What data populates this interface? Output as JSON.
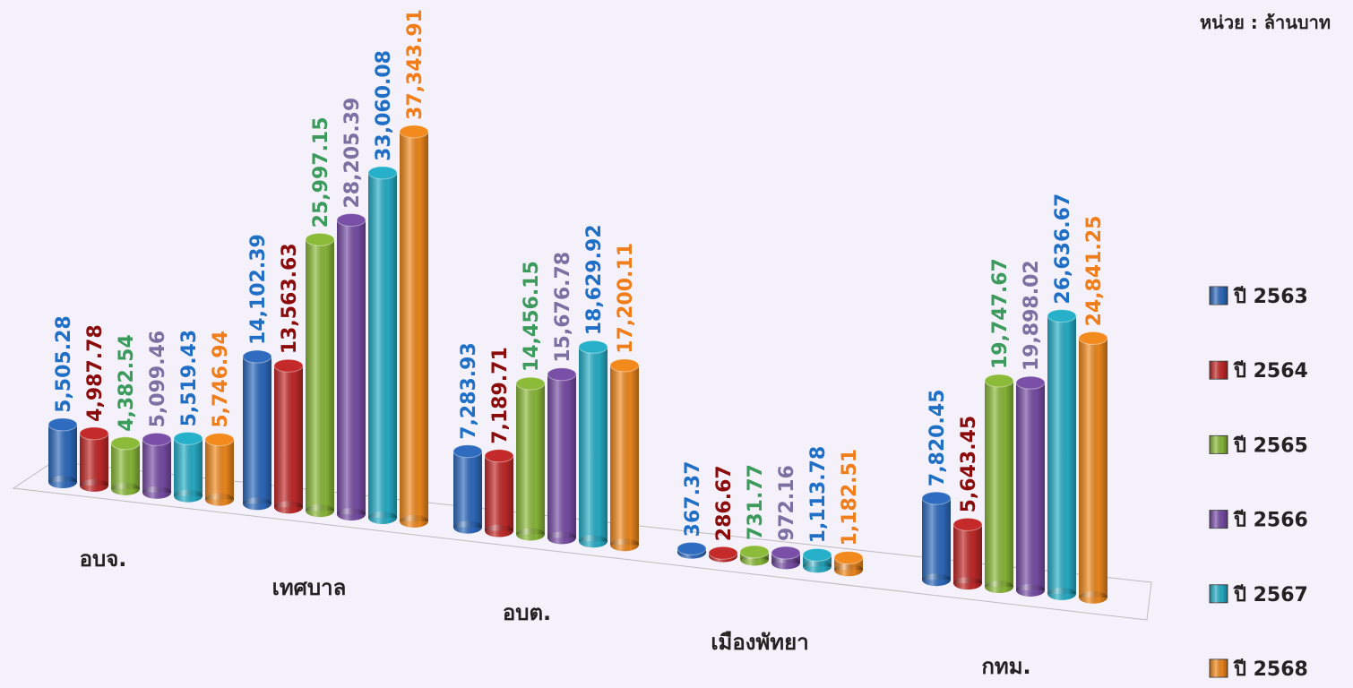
{
  "chart_data": {
    "type": "bar3d",
    "annotation": "หน่วย : ล้านบาท",
    "categories": [
      "อบจ.",
      "เทศบาล",
      "อบต.",
      "เมืองพัทยา",
      "กทม."
    ],
    "series": [
      {
        "name": "ปี 2563",
        "color": "#2f6cc0",
        "label_color": "#1f6fc6",
        "values": [
          5505.28,
          14102.39,
          7283.93,
          367.37,
          7820.45
        ],
        "value_labels": [
          "5,505.28",
          "14,102.39",
          "7,283.93",
          "367.37",
          "7,820.45"
        ]
      },
      {
        "name": "ปี 2564",
        "color": "#c42a2a",
        "label_color": "#8b0a0a",
        "values": [
          4987.78,
          13563.63,
          7189.71,
          286.67,
          5643.45
        ],
        "value_labels": [
          "4,987.78",
          "13,563.63",
          "7,189.71",
          "286.67",
          "5,643.45"
        ]
      },
      {
        "name": "ปี 2565",
        "color": "#8cbb3a",
        "label_color": "#3b9a5c",
        "values": [
          4382.54,
          25997.15,
          14456.15,
          731.77,
          19747.67
        ],
        "value_labels": [
          "4,382.54",
          "25,997.15",
          "14,456.15",
          "731.77",
          "19,747.67"
        ]
      },
      {
        "name": "ปี 2566",
        "color": "#7a4fa8",
        "label_color": "#7a70a2",
        "values": [
          5099.46,
          28205.39,
          15676.78,
          972.16,
          19898.02
        ],
        "value_labels": [
          "5,099.46",
          "28,205.39",
          "15,676.78",
          "972.16",
          "19,898.02"
        ]
      },
      {
        "name": "ปี 2567",
        "color": "#27b0c9",
        "label_color": "#1f6fc6",
        "values": [
          5519.43,
          33060.08,
          18629.92,
          1113.78,
          26636.67
        ],
        "value_labels": [
          "5,519.43",
          "33,060.08",
          "18,629.92",
          "1,113.78",
          "26,636.67"
        ]
      },
      {
        "name": "ปี 2568",
        "color": "#f28a1e",
        "label_color": "#f07d1a",
        "values": [
          5746.94,
          37343.91,
          17200.11,
          1182.51,
          24841.25
        ],
        "value_labels": [
          "5,746.94",
          "37,343.91",
          "17,200.11",
          "1,182.51",
          "24,841.25"
        ]
      }
    ],
    "legend": "right"
  }
}
